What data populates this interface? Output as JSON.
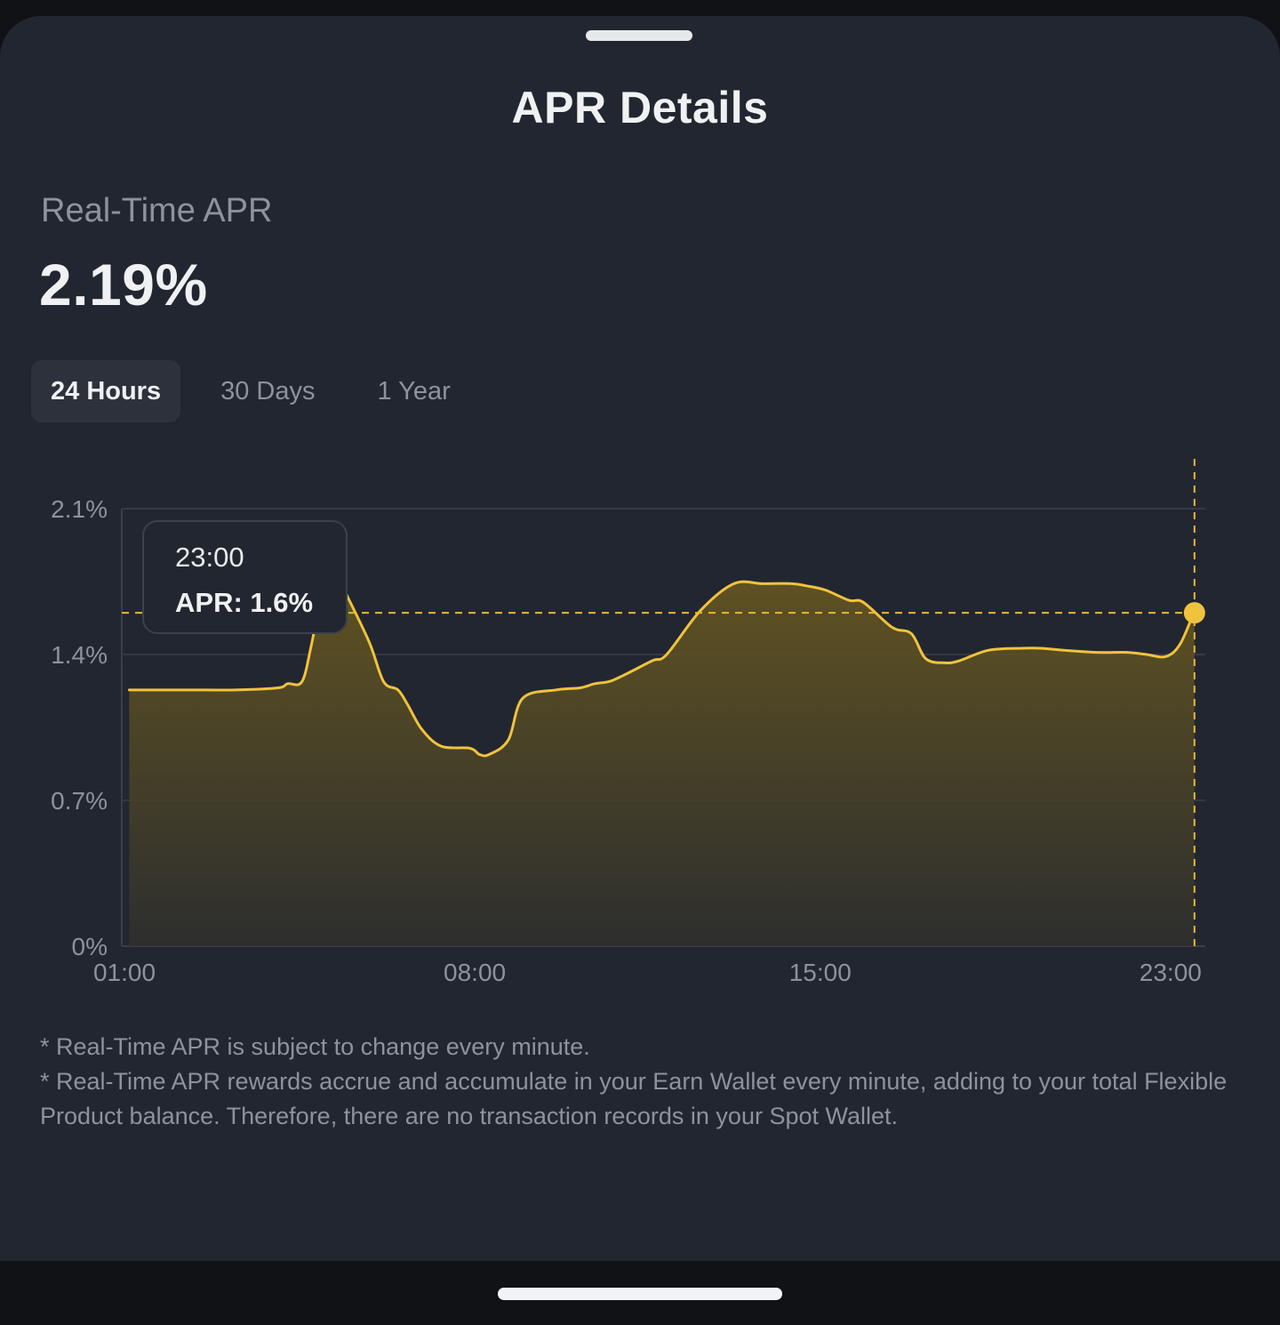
{
  "header": {
    "title": "APR Details"
  },
  "apr": {
    "label": "Real-Time APR",
    "value": "2.19%"
  },
  "tabs": [
    {
      "label": "24 Hours",
      "active": true
    },
    {
      "label": "30 Days",
      "active": false
    },
    {
      "label": "1 Year",
      "active": false
    }
  ],
  "tooltip": {
    "time": "23:00",
    "value_text": "APR: 1.6%"
  },
  "colors": {
    "accent": "#f0c33c",
    "background": "#222630",
    "text_primary": "#f0f1f3",
    "text_secondary": "#8d939c"
  },
  "chart_data": {
    "type": "area",
    "title": "",
    "xlabel": "",
    "ylabel": "",
    "ylim": [
      0,
      2.1
    ],
    "yticks": [
      {
        "value": 0,
        "label": "0%"
      },
      {
        "value": 0.7,
        "label": "0.7%"
      },
      {
        "value": 1.4,
        "label": "1.4%"
      },
      {
        "value": 2.1,
        "label": "2.1%"
      }
    ],
    "xlim": [
      1,
      23.6
    ],
    "xticks": [
      {
        "value": 1,
        "label": "01:00"
      },
      {
        "value": 8.3,
        "label": "08:00"
      },
      {
        "value": 15.5,
        "label": "15:00"
      },
      {
        "value": 22.8,
        "label": "23:00"
      }
    ],
    "grid": true,
    "series": [
      {
        "x": [
          1.1,
          2.3,
          3.3,
          4.2,
          4.4,
          4.7,
          4.9,
          5.2,
          5.4,
          5.6,
          6.1,
          6.4,
          6.7,
          6.9,
          7.2,
          7.6,
          8.2,
          8.4,
          8.6,
          9.0,
          9.3,
          10.0,
          10.5,
          10.8,
          11.1,
          11.4,
          12.0,
          12.3,
          13.0,
          13.7,
          14.3,
          14.9,
          15.2,
          15.6,
          16.1,
          16.4,
          17.0,
          17.4,
          17.7,
          18.1,
          18.4,
          19.0,
          19.7,
          20.1,
          20.6,
          21.3,
          21.9,
          22.3,
          22.7,
          23.0,
          23.3
        ],
        "y": [
          1.23,
          1.23,
          1.23,
          1.24,
          1.26,
          1.27,
          1.45,
          1.78,
          1.79,
          1.7,
          1.46,
          1.27,
          1.23,
          1.16,
          1.04,
          0.96,
          0.95,
          0.92,
          0.92,
          0.99,
          1.19,
          1.23,
          1.24,
          1.26,
          1.27,
          1.3,
          1.37,
          1.4,
          1.61,
          1.74,
          1.74,
          1.74,
          1.73,
          1.71,
          1.66,
          1.65,
          1.53,
          1.5,
          1.38,
          1.36,
          1.37,
          1.42,
          1.43,
          1.43,
          1.42,
          1.41,
          1.41,
          1.4,
          1.39,
          1.45,
          1.61
        ]
      }
    ],
    "highlight": {
      "x": 23.3,
      "y": 1.6
    }
  },
  "footnotes": [
    "* Real-Time APR is subject to change every minute.",
    "* Real-Time APR rewards accrue and accumulate in your Earn Wallet every minute, adding to your total Flexible Product balance. Therefore, there are no transaction records in your Spot Wallet."
  ]
}
